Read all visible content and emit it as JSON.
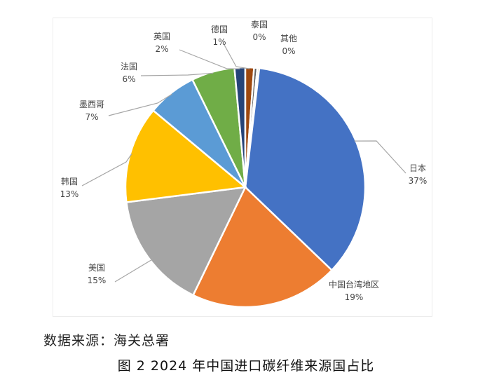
{
  "chart_data": {
    "type": "pie",
    "categories": [
      "日本",
      "中国台湾地区",
      "美国",
      "韩国",
      "墨西哥",
      "法国",
      "英国",
      "德国",
      "泰国",
      "其他"
    ],
    "values": [
      37,
      19,
      15,
      13,
      7,
      6,
      2,
      1,
      0,
      0
    ],
    "value_labels": [
      "37%",
      "19%",
      "15%",
      "13%",
      "7%",
      "6%",
      "2%",
      "1%",
      "0%",
      "0%"
    ],
    "colors": [
      "#4472C4",
      "#ED7D31",
      "#A5A5A5",
      "#FFC000",
      "#5B9BD5",
      "#70AD47",
      "#264478",
      "#9E480E",
      "#636363",
      "#997300"
    ],
    "legend": "none",
    "data_labels": "outside, with leader lines"
  },
  "source_note": "数据来源：海关总署",
  "caption": "图 2  2024 年中国进口碳纤维来源国占比"
}
